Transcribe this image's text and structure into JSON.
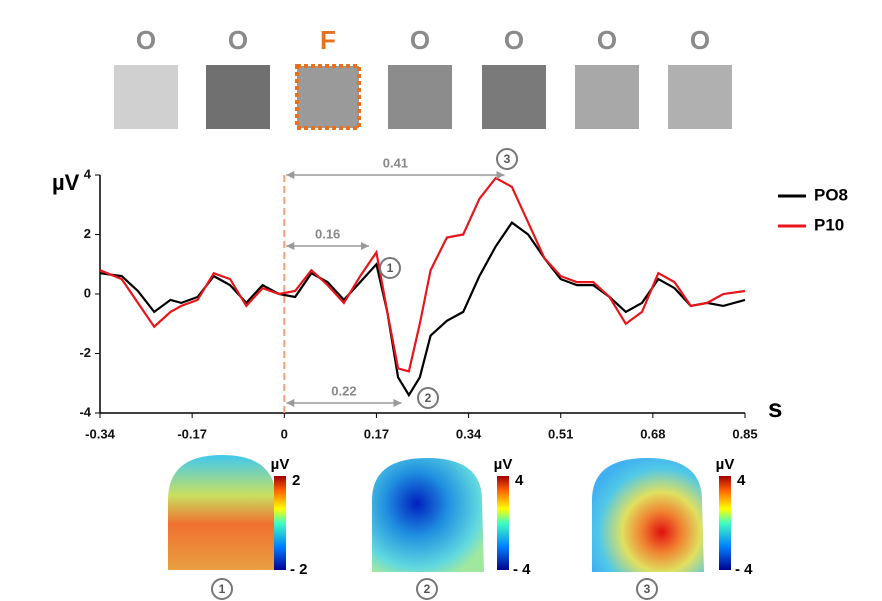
{
  "chart_data": {
    "type": "line",
    "stimuli": [
      "O",
      "O",
      "F",
      "O",
      "O",
      "O",
      "O"
    ],
    "y_label": "µV",
    "x_label": "s",
    "x": [
      -0.34,
      -0.3,
      -0.27,
      -0.24,
      -0.21,
      -0.19,
      -0.16,
      -0.13,
      -0.1,
      -0.07,
      -0.04,
      -0.01,
      0.02,
      0.05,
      0.08,
      0.11,
      0.14,
      0.17,
      0.19,
      0.21,
      0.23,
      0.25,
      0.27,
      0.3,
      0.33,
      0.36,
      0.39,
      0.42,
      0.45,
      0.48,
      0.51,
      0.54,
      0.57,
      0.6,
      0.63,
      0.66,
      0.69,
      0.72,
      0.75,
      0.78,
      0.81,
      0.85
    ],
    "series": [
      {
        "name": "PO8",
        "color": "#000000",
        "values": [
          0.7,
          0.6,
          0.1,
          -0.6,
          -0.2,
          -0.3,
          -0.1,
          0.6,
          0.3,
          -0.3,
          0.3,
          0.0,
          -0.1,
          0.7,
          0.4,
          -0.2,
          0.4,
          1.0,
          -0.6,
          -2.8,
          -3.4,
          -2.8,
          -1.4,
          -0.9,
          -0.6,
          0.6,
          1.6,
          2.4,
          2.0,
          1.2,
          0.5,
          0.3,
          0.3,
          -0.1,
          -0.6,
          -0.3,
          0.5,
          0.2,
          -0.4,
          -0.3,
          -0.4,
          -0.2
        ]
      },
      {
        "name": "P10",
        "color": "#e8161b",
        "values": [
          0.8,
          0.5,
          -0.3,
          -1.1,
          -0.6,
          -0.4,
          -0.2,
          0.7,
          0.5,
          -0.4,
          0.2,
          0.0,
          0.1,
          0.8,
          0.3,
          -0.3,
          0.6,
          1.4,
          -0.6,
          -2.5,
          -2.6,
          -1.0,
          0.8,
          1.9,
          2.0,
          3.2,
          3.9,
          3.6,
          2.4,
          1.2,
          0.6,
          0.4,
          0.4,
          -0.1,
          -1.0,
          -0.6,
          0.7,
          0.4,
          -0.4,
          -0.3,
          0.0,
          0.1
        ]
      }
    ],
    "xlim": [
      -0.34,
      0.85
    ],
    "ylim": [
      -4,
      4
    ],
    "xticks": [
      -0.34,
      -0.17,
      0,
      0.17,
      0.34,
      0.51,
      0.68,
      0.85
    ],
    "yticks": [
      -4,
      -2,
      0,
      2,
      4
    ],
    "onset_line": 0,
    "annotations": [
      {
        "value": 0.41,
        "marker": "3"
      },
      {
        "value": 0.16,
        "marker": "1"
      },
      {
        "value": 0.22,
        "marker": "2"
      }
    ],
    "topomaps": [
      {
        "unit": "µV",
        "max": 2,
        "min": {
          "value": -2,
          "label": "- 2"
        },
        "marker": "1"
      },
      {
        "unit": "µV",
        "max": 4,
        "min": {
          "value": -4,
          "label": "- 4"
        },
        "marker": "2"
      },
      {
        "unit": "µV",
        "max": 4,
        "min": {
          "value": -4,
          "label": "- 4"
        },
        "marker": "3"
      }
    ]
  }
}
